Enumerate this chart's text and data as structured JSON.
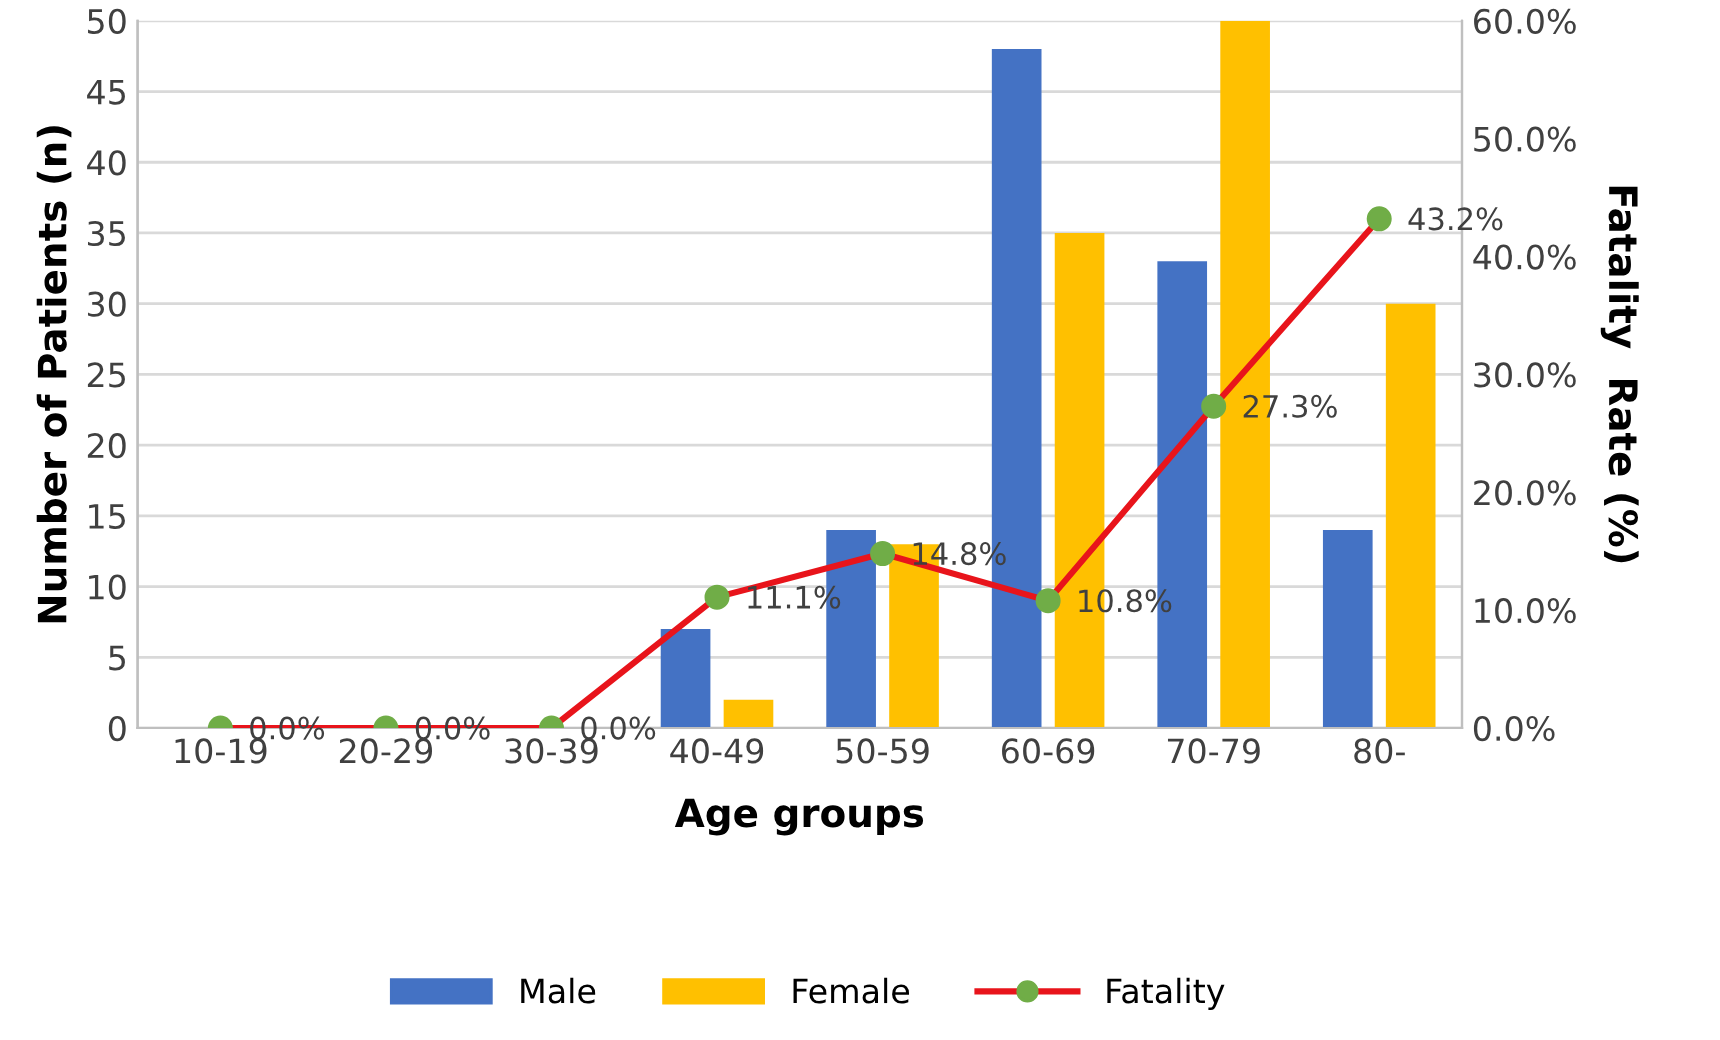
{
  "chart_data": {
    "type": "bar",
    "xlabel": "Age groups",
    "ylabel": "Number of Patients (n)",
    "y2label": "Fatality  Rate (%)",
    "categories": [
      "10-19",
      "20-29",
      "30-39",
      "40-49",
      "50-59",
      "60-69",
      "70-79",
      "80-"
    ],
    "series": [
      {
        "name": "Male",
        "color": "#4472c4",
        "values": [
          0,
          0,
          0,
          7,
          14,
          48,
          33,
          14
        ]
      },
      {
        "name": "Female",
        "color": "#ffc000",
        "values": [
          0,
          0,
          0,
          2,
          13,
          35,
          50,
          30
        ]
      },
      {
        "name": "Fatality",
        "type": "line",
        "axis": "y2",
        "color": "#e8141b",
        "marker": "circle",
        "values": [
          0.0,
          0.0,
          0.0,
          11.1,
          14.8,
          10.8,
          27.3,
          43.2
        ],
        "value_labels": [
          "0.0%",
          "0.0%",
          "0.0%",
          "11.1%",
          "14.8%",
          "10.8%",
          "27.3%",
          "43.2%"
        ]
      }
    ],
    "ylim": [
      0,
      50
    ],
    "yticks": [
      0,
      5,
      10,
      15,
      20,
      25,
      30,
      35,
      40,
      45,
      50
    ],
    "y2lim": [
      0,
      60
    ],
    "y2ticks": [
      {
        "value": 0,
        "label": "0.0%"
      },
      {
        "value": 10,
        "label": "10.0%"
      },
      {
        "value": 20,
        "label": "20.0%"
      },
      {
        "value": 30,
        "label": "30.0%"
      },
      {
        "value": 40,
        "label": "40.0%"
      },
      {
        "value": 50,
        "label": "50.0%"
      },
      {
        "value": 60,
        "label": "60.0%"
      }
    ],
    "grid": "y",
    "legend": "bottom"
  }
}
